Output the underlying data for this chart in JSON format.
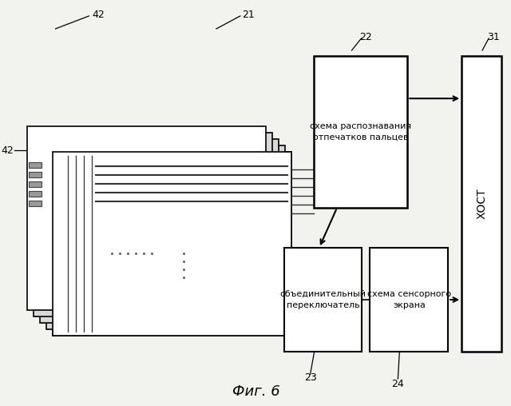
{
  "title": "Фиг. 6",
  "bg_color": "#f2f2ee",
  "label_22": "схема распознавания\nотпечатков пальцев",
  "label_23": "объединительный\nпереключатель",
  "label_24": "схема сенсорного\nэкрана",
  "label_31": "ХОСТ",
  "num_21": "21",
  "num_22": "22",
  "num_23": "23",
  "num_24": "24",
  "num_31": "31",
  "num_42a": "42",
  "num_42b": "42"
}
